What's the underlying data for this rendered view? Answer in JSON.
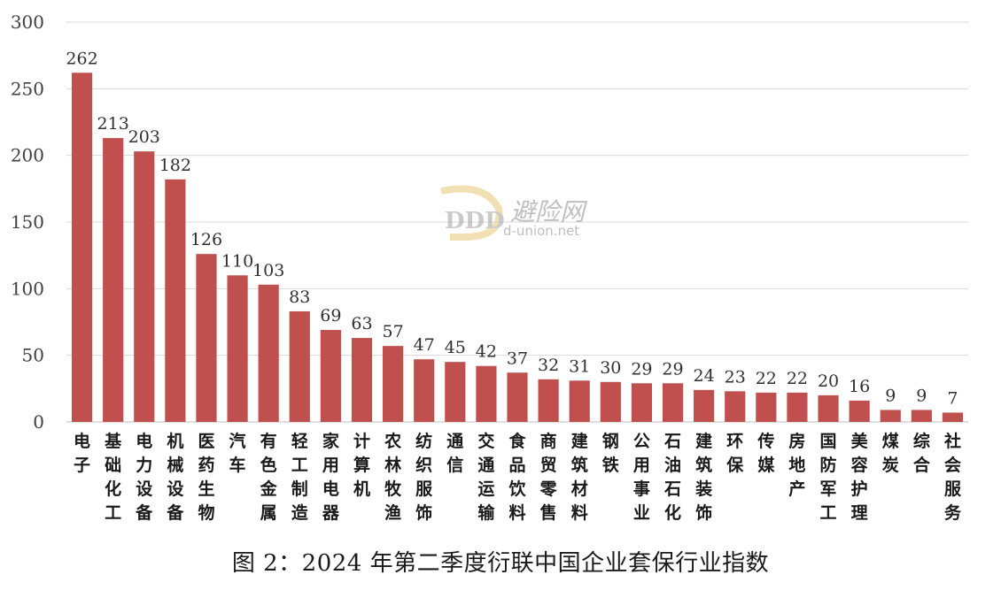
{
  "chart_data": {
    "type": "bar",
    "title": "",
    "xlabel": "",
    "ylabel": "",
    "ylim": [
      0,
      300
    ],
    "yticks": [
      0,
      50,
      100,
      150,
      200,
      250,
      300
    ],
    "grid": true,
    "bar_color": "#c0504d",
    "categories": [
      "电子",
      "基础化工",
      "电力设备",
      "机械设备",
      "医药生物",
      "汽车",
      "有色金属",
      "轻工制造",
      "家用电器",
      "计算机",
      "农林牧渔",
      "纺织服饰",
      "通信",
      "交通运输",
      "食品饮料",
      "商贸零售",
      "建筑材料",
      "钢铁",
      "公用事业",
      "石油石化",
      "建筑装饰",
      "环保",
      "传媒",
      "房地产",
      "国防军工",
      "美容护理",
      "煤炭",
      "综合",
      "社会服务"
    ],
    "values": [
      262,
      213,
      203,
      182,
      126,
      110,
      103,
      83,
      69,
      63,
      57,
      47,
      45,
      42,
      37,
      32,
      31,
      30,
      29,
      29,
      24,
      23,
      22,
      22,
      20,
      16,
      9,
      9,
      7
    ]
  },
  "caption": "图 2：2024 年第二季度衍联中国企业套保行业指数",
  "watermark": {
    "logo": "DDD",
    "text": "避险网",
    "url": "d-union.net"
  }
}
